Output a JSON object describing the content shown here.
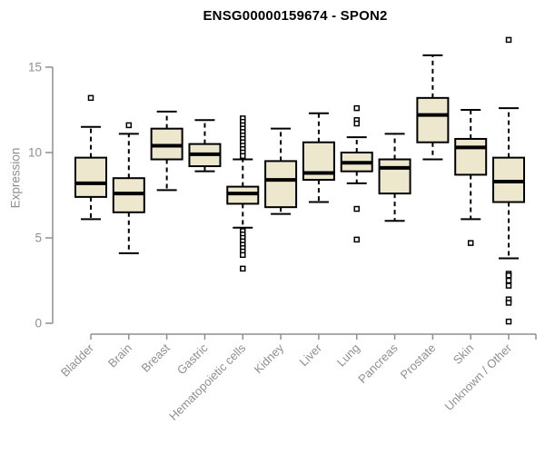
{
  "chart_data": {
    "type": "boxplot",
    "title": "ENSG00000159674 - SPON2",
    "ylabel": "Expression",
    "xlabel": "",
    "y_ticks": [
      0,
      5,
      10,
      15
    ],
    "ylim": [
      0,
      15
    ],
    "grid": false,
    "legend": "none",
    "categories": [
      "Bladder",
      "Brain",
      "Breast",
      "Gastric",
      "Hematopoietic cells",
      "Kidney",
      "Liver",
      "Lung",
      "Pancreas",
      "Prostate",
      "Skin",
      "Unknown / Other"
    ],
    "series": [
      {
        "name": "Bladder",
        "low": 6.1,
        "q1": 7.4,
        "median": 8.2,
        "q3": 9.7,
        "high": 11.5,
        "outliers": [
          13.2
        ]
      },
      {
        "name": "Brain",
        "low": 4.1,
        "q1": 6.5,
        "median": 7.6,
        "q3": 8.5,
        "high": 11.1,
        "outliers": [
          11.6
        ]
      },
      {
        "name": "Breast",
        "low": 7.8,
        "q1": 9.6,
        "median": 10.4,
        "q3": 11.4,
        "high": 12.4,
        "outliers": []
      },
      {
        "name": "Gastric",
        "low": 8.9,
        "q1": 9.2,
        "median": 9.9,
        "q3": 10.5,
        "high": 11.9,
        "outliers": []
      },
      {
        "name": "Hematopoietic cells",
        "low": 5.6,
        "q1": 7.0,
        "median": 7.6,
        "q3": 8.0,
        "high": 9.6,
        "outliers": [
          12.0,
          11.8,
          11.6,
          11.4,
          11.2,
          11.0,
          10.8,
          10.6,
          10.4,
          10.2,
          10.0,
          9.8,
          5.4,
          5.2,
          5.0,
          4.8,
          4.6,
          4.4,
          4.2,
          4.0,
          3.2
        ]
      },
      {
        "name": "Kidney",
        "low": 6.4,
        "q1": 6.8,
        "median": 8.4,
        "q3": 9.5,
        "high": 11.4,
        "outliers": []
      },
      {
        "name": "Liver",
        "low": 7.1,
        "q1": 8.4,
        "median": 8.8,
        "q3": 10.6,
        "high": 12.3,
        "outliers": []
      },
      {
        "name": "Lung",
        "low": 8.2,
        "q1": 8.9,
        "median": 9.4,
        "q3": 10.0,
        "high": 10.9,
        "outliers": [
          12.6,
          11.9,
          11.7,
          6.7,
          4.9
        ]
      },
      {
        "name": "Pancreas",
        "low": 6.0,
        "q1": 7.6,
        "median": 9.1,
        "q3": 9.6,
        "high": 11.1,
        "outliers": []
      },
      {
        "name": "Prostate",
        "low": 9.6,
        "q1": 10.6,
        "median": 12.2,
        "q3": 13.2,
        "high": 15.7,
        "outliers": []
      },
      {
        "name": "Skin",
        "low": 6.1,
        "q1": 8.7,
        "median": 10.3,
        "q3": 10.8,
        "high": 12.5,
        "outliers": [
          4.7
        ]
      },
      {
        "name": "Unknown / Other",
        "low": 3.8,
        "q1": 7.1,
        "median": 8.3,
        "q3": 9.7,
        "high": 12.6,
        "outliers": [
          16.6,
          2.9,
          2.8,
          2.5,
          2.2,
          1.4,
          1.2,
          0.1
        ]
      }
    ],
    "colors": {
      "box_fill": "#ede8cd",
      "box_stroke": "#000000",
      "axis": "#8f8f8f",
      "tick_label": "#8f8f8f",
      "title": "#000000",
      "background": "#ffffff"
    }
  }
}
